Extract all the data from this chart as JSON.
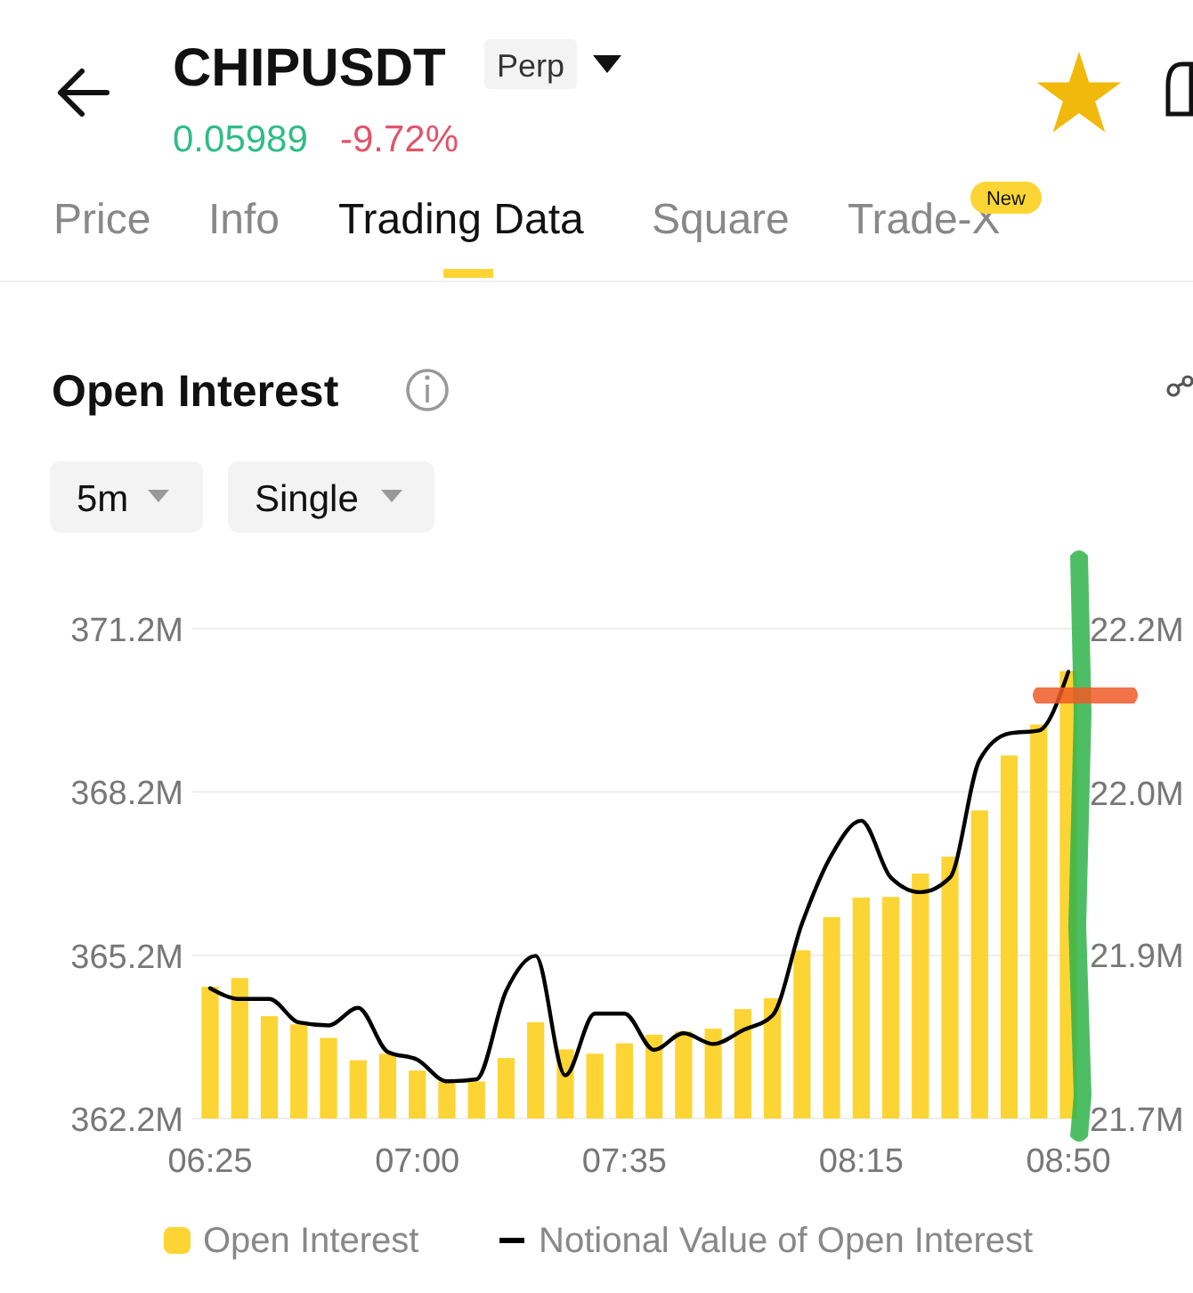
{
  "chart_data": {
    "type": "bar",
    "title": "Open Interest",
    "annotations": [
      "CHIPUSDT",
      "Perp",
      "0.05989",
      "-9.72%",
      "Price",
      "Info",
      "Trading Data",
      "Square",
      "Trade-X",
      "New",
      "5m",
      "Single"
    ],
    "categories": [
      "06:25",
      null,
      null,
      null,
      null,
      null,
      null,
      "07:00",
      null,
      null,
      null,
      null,
      null,
      null,
      "07:35",
      null,
      null,
      null,
      null,
      null,
      null,
      null,
      "08:15",
      null,
      null,
      null,
      null,
      null,
      null,
      "08:50"
    ],
    "series": [
      {
        "name": "Open Interest",
        "color": "#fcd535",
        "values": [
          364.62,
          364.78,
          364.08,
          363.93,
          363.68,
          363.27,
          363.39,
          363.08,
          362.88,
          362.88,
          363.31,
          363.97,
          363.47,
          363.39,
          363.58,
          363.74,
          363.8,
          363.85,
          364.21,
          364.41,
          365.29,
          365.9,
          366.26,
          366.27,
          366.7,
          367.01,
          367.86,
          368.87,
          369.44,
          370.42
        ]
      },
      {
        "name": "Notional Value of Open Interest",
        "type": "line",
        "axis": "y2",
        "color": "#000000",
        "values": [
          21.833,
          21.822,
          21.822,
          21.798,
          21.795,
          21.813,
          21.768,
          21.76,
          21.738,
          21.74,
          21.83,
          21.866,
          21.744,
          21.807,
          21.807,
          21.77,
          21.787,
          21.776,
          21.79,
          21.805,
          21.899,
          21.969,
          22.004,
          21.946,
          21.931,
          21.946,
          22.066,
          22.093,
          22.096,
          22.156
        ]
      }
    ],
    "ylim": [
      362.2,
      371.2
    ],
    "yticks": [
      {
        "value": 362.2,
        "label": "362.2M"
      },
      {
        "value": 365.2,
        "label": "365.2M"
      },
      {
        "value": 368.2,
        "label": "368.2M"
      },
      {
        "value": 371.2,
        "label": "371.2M"
      }
    ],
    "y2lim": [
      21.7,
      22.2
    ],
    "y2ticks": [
      {
        "value": 21.7,
        "label": "21.7M"
      },
      {
        "value": 21.867,
        "label": "21.9M"
      },
      {
        "value": 22.033,
        "label": "22.0M"
      },
      {
        "value": 22.2,
        "label": "22.2M"
      }
    ],
    "grid": "y",
    "legend": "bottom",
    "line_style": "solid",
    "marker": "none"
  }
}
